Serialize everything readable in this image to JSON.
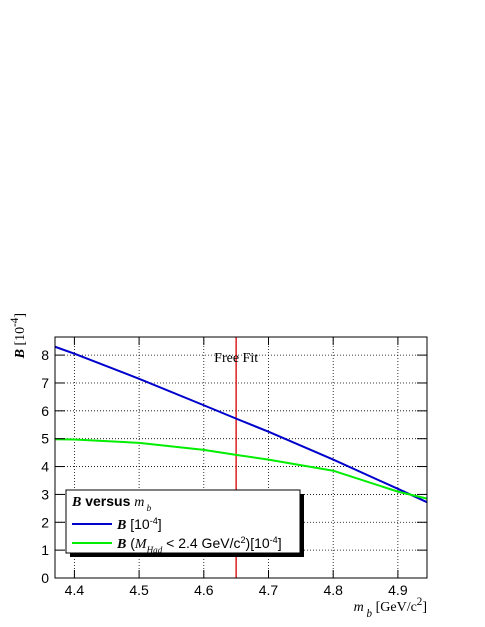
{
  "chart_data": {
    "type": "line",
    "y_label": [
      {
        "text": "B",
        "style": "bold-italic"
      },
      {
        "text": " [10"
      },
      {
        "text": "-4",
        "style": "sup"
      },
      {
        "text": "]"
      }
    ],
    "x_label": [
      {
        "text": "m",
        "style": "italic"
      },
      {
        "text": " b",
        "style": "sub-italic"
      },
      {
        "text": " [GeV/c"
      },
      {
        "text": "2",
        "style": "sup"
      },
      {
        "text": "]"
      }
    ],
    "x": [
      4.37,
      4.4,
      4.5,
      4.6,
      4.65,
      4.7,
      4.8,
      4.9,
      4.945
    ],
    "series": [
      {
        "label": [
          {
            "text": "B",
            "style": "bold-italic"
          },
          {
            "text": " [10"
          },
          {
            "text": "-4",
            "style": "sup"
          },
          {
            "text": "]"
          }
        ],
        "color": "#0000cc",
        "values": [
          8.3,
          8.05,
          7.15,
          6.2,
          5.72,
          5.25,
          4.25,
          3.2,
          2.72
        ]
      },
      {
        "label": [
          {
            "text": "B",
            "style": "bold-italic"
          },
          {
            "text": " ("
          },
          {
            "text": "M",
            "style": "italic"
          },
          {
            "text": "Had",
            "style": "sub-italic"
          },
          {
            "text": " < 2.4 GeV/c"
          },
          {
            "text": "2",
            "style": "sup"
          },
          {
            "text": ")[10"
          },
          {
            "text": "-4",
            "style": "sup"
          },
          {
            "text": "]"
          }
        ],
        "color": "#00ee00",
        "values": [
          4.98,
          4.97,
          4.85,
          4.6,
          4.42,
          4.25,
          3.85,
          3.1,
          2.85
        ]
      }
    ],
    "legend_title": [
      {
        "text": "B",
        "style": "bold-italic"
      },
      {
        "text": " versus ",
        "style": "bold"
      },
      {
        "text": "m",
        "style": "italic"
      },
      {
        "text": " b",
        "style": "sub-italic"
      }
    ],
    "marker_line": {
      "x": 4.65,
      "color": "#dd2222",
      "label": "Free Fit"
    },
    "xlim": [
      4.37,
      4.945
    ],
    "ylim": [
      0,
      8.65
    ],
    "xticks": [
      4.4,
      4.5,
      4.6,
      4.7,
      4.8,
      4.9
    ],
    "yticks": [
      0,
      1,
      2,
      3,
      4,
      5,
      6,
      7,
      8
    ],
    "grid": true
  }
}
